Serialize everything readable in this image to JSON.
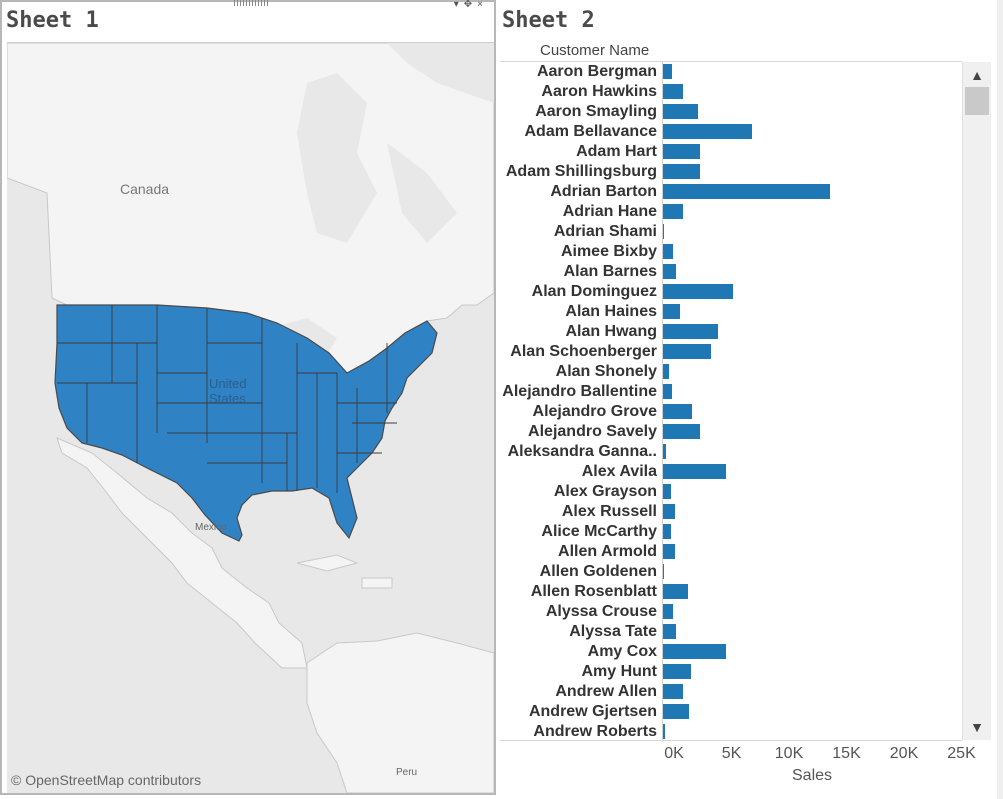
{
  "sheet1": {
    "title": "Sheet 1",
    "labels": {
      "canada": "Canada",
      "us": "United States",
      "mexico": "Mexico",
      "peru": "Peru"
    },
    "attribution": "© OpenStreetMap contributors",
    "colors": {
      "water": "#e8e8e8",
      "land": "#f4f4f4",
      "highlight": "#2f82c4",
      "borders": "#4a4a4a"
    }
  },
  "sheet2": {
    "title": "Sheet 2",
    "column_header": "Customer Name",
    "bar_color": "#1f77b4",
    "scroll_up_icon": "chevron-up-icon",
    "scroll_down_icon": "chevron-down-icon"
  },
  "chart_data": {
    "type": "bar",
    "orientation": "horizontal",
    "categories": [
      "Aaron Bergman",
      "Aaron Hawkins",
      "Aaron Smayling",
      "Adam Bellavance",
      "Adam Hart",
      "Adam Shillingsburg",
      "Adrian Barton",
      "Adrian Hane",
      "Adrian Shami",
      "Aimee Bixby",
      "Alan Barnes",
      "Alan Dominguez",
      "Alan Haines",
      "Alan Hwang",
      "Alan Schoenberger",
      "Alan Shonely",
      "Alejandro Ballentine",
      "Alejandro Grove",
      "Alejandro Savely",
      "Aleksandra Ganna..",
      "Alex Avila",
      "Alex Grayson",
      "Alex Russell",
      "Alice McCarthy",
      "Allen Armold",
      "Allen Goldenen",
      "Allen Rosenblatt",
      "Alyssa Crouse",
      "Alyssa Tate",
      "Amy Cox",
      "Amy Hunt",
      "Andrew Allen",
      "Andrew Gjertsen",
      "Andrew Roberts"
    ],
    "values": [
      800,
      1700,
      3000,
      7700,
      3200,
      3200,
      14500,
      1700,
      60,
      900,
      1100,
      6100,
      1500,
      4800,
      4200,
      500,
      800,
      2500,
      3200,
      300,
      5500,
      700,
      1000,
      700,
      1000,
      100,
      2200,
      900,
      1100,
      5500,
      2400,
      1700,
      2300,
      200
    ],
    "xlabel": "Sales",
    "ylabel": "Customer Name",
    "xlim": [
      0,
      26000
    ],
    "ticks": [
      0,
      5000,
      10000,
      15000,
      20000,
      25000
    ],
    "tick_labels": [
      "0K",
      "5K",
      "10K",
      "15K",
      "20K",
      "25K"
    ]
  }
}
